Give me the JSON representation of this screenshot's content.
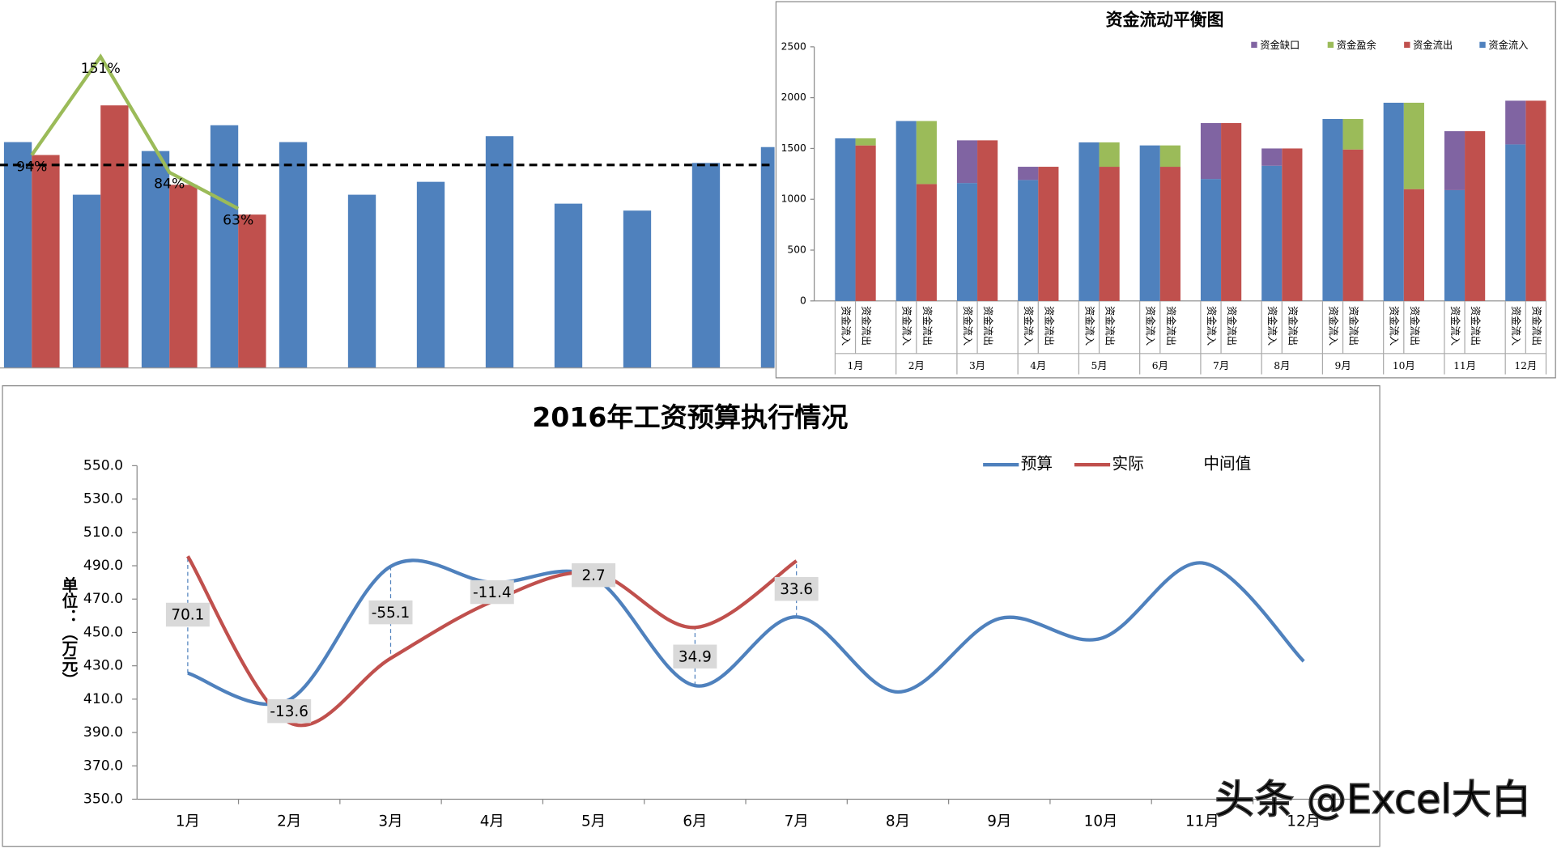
{
  "chart_data": [
    {
      "type": "bar",
      "ylim": [
        0,
        320
      ],
      "y2lim": [
        -29,
        155
      ],
      "series": [
        {
          "color": "#4f81bd",
          "values": [
            227,
            174,
            218,
            244,
            227,
            174,
            187,
            233,
            165,
            158,
            206,
            222
          ]
        },
        {
          "color": "#c0504d",
          "values": [
            214,
            264,
            184,
            154
          ]
        },
        {
          "color": "#9bbb59",
          "axis": "y2",
          "type": "line",
          "values": [
            94,
            151,
            84,
            63
          ],
          "value_labels": [
            "94%",
            "151%",
            "84%",
            "63%"
          ]
        }
      ],
      "reference_line": 204
    },
    {
      "type": "stacked_bar",
      "title": "资金流动平衡图",
      "categories": [
        "1月",
        "2月",
        "3月",
        "4月",
        "5月",
        "6月",
        "7月",
        "8月",
        "9月",
        "10月",
        "11月",
        "12月"
      ],
      "groups": [
        "资金流入",
        "资金流出"
      ],
      "ylim": [
        0,
        2500
      ],
      "yticks": [
        0,
        500,
        1000,
        1500,
        2000,
        2500
      ],
      "series": [
        {
          "name": "资金缺口",
          "color": "#8064a2",
          "stack": 0,
          "values": [
            0,
            0,
            420,
            130,
            0,
            0,
            550,
            170,
            0,
            0,
            580,
            430
          ]
        },
        {
          "name": "资金盈余",
          "color": "#9bbb59",
          "stack": 1,
          "values": [
            70,
            620,
            0,
            0,
            240,
            210,
            0,
            0,
            300,
            850,
            0,
            0
          ]
        },
        {
          "name": "资金流出",
          "color": "#c0504d",
          "stack": 1,
          "values": [
            1530,
            1150,
            1580,
            1320,
            1320,
            1320,
            1750,
            1500,
            1490,
            1100,
            1670,
            1970
          ]
        },
        {
          "name": "资金流入",
          "color": "#4f81bd",
          "stack": 0,
          "values": [
            1600,
            1770,
            1160,
            1190,
            1560,
            1530,
            1200,
            1330,
            1790,
            1950,
            1090,
            1540
          ]
        }
      ]
    },
    {
      "type": "line",
      "title": "2016年工资预算执行情况",
      "ylabel": "单位：（万元）",
      "smooth": true,
      "categories": [
        "1月",
        "2月",
        "3月",
        "4月",
        "5月",
        "6月",
        "7月",
        "8月",
        "9月",
        "10月",
        "11月",
        "12月"
      ],
      "ylim": [
        350,
        550
      ],
      "yticks": [
        {
          "value": 350,
          "label": "350.0"
        },
        {
          "value": 370,
          "label": "370.0"
        },
        {
          "value": 390,
          "label": "390.0"
        },
        {
          "value": 410,
          "label": "410.0"
        },
        {
          "value": 430,
          "label": "430.0"
        },
        {
          "value": 450,
          "label": "450.0"
        },
        {
          "value": 470,
          "label": "470.0"
        },
        {
          "value": 490,
          "label": "490.0"
        },
        {
          "value": 510,
          "label": "510.0"
        },
        {
          "value": 530,
          "label": "530.0"
        },
        {
          "value": 550,
          "label": "550.0"
        }
      ],
      "series": [
        {
          "name": "预算",
          "color": "#4f81bd",
          "values": [
            425.6,
            409.6,
            489.6,
            479.9,
            483.0,
            418.1,
            459.3,
            414.3,
            458.3,
            446.4,
            491.7,
            432.7
          ]
        },
        {
          "name": "实际",
          "color": "#c0504d",
          "values": [
            495.7,
            396.0,
            434.5,
            468.5,
            485.7,
            453.0,
            492.9,
            null,
            null,
            null,
            null,
            null
          ]
        },
        {
          "name": "中间值",
          "color": null,
          "values": [
            70.1,
            -13.6,
            -55.1,
            -11.4,
            2.7,
            34.9,
            33.6,
            null,
            null,
            null,
            null,
            null
          ]
        }
      ]
    }
  ],
  "watermark": "头条 @Excel大白"
}
